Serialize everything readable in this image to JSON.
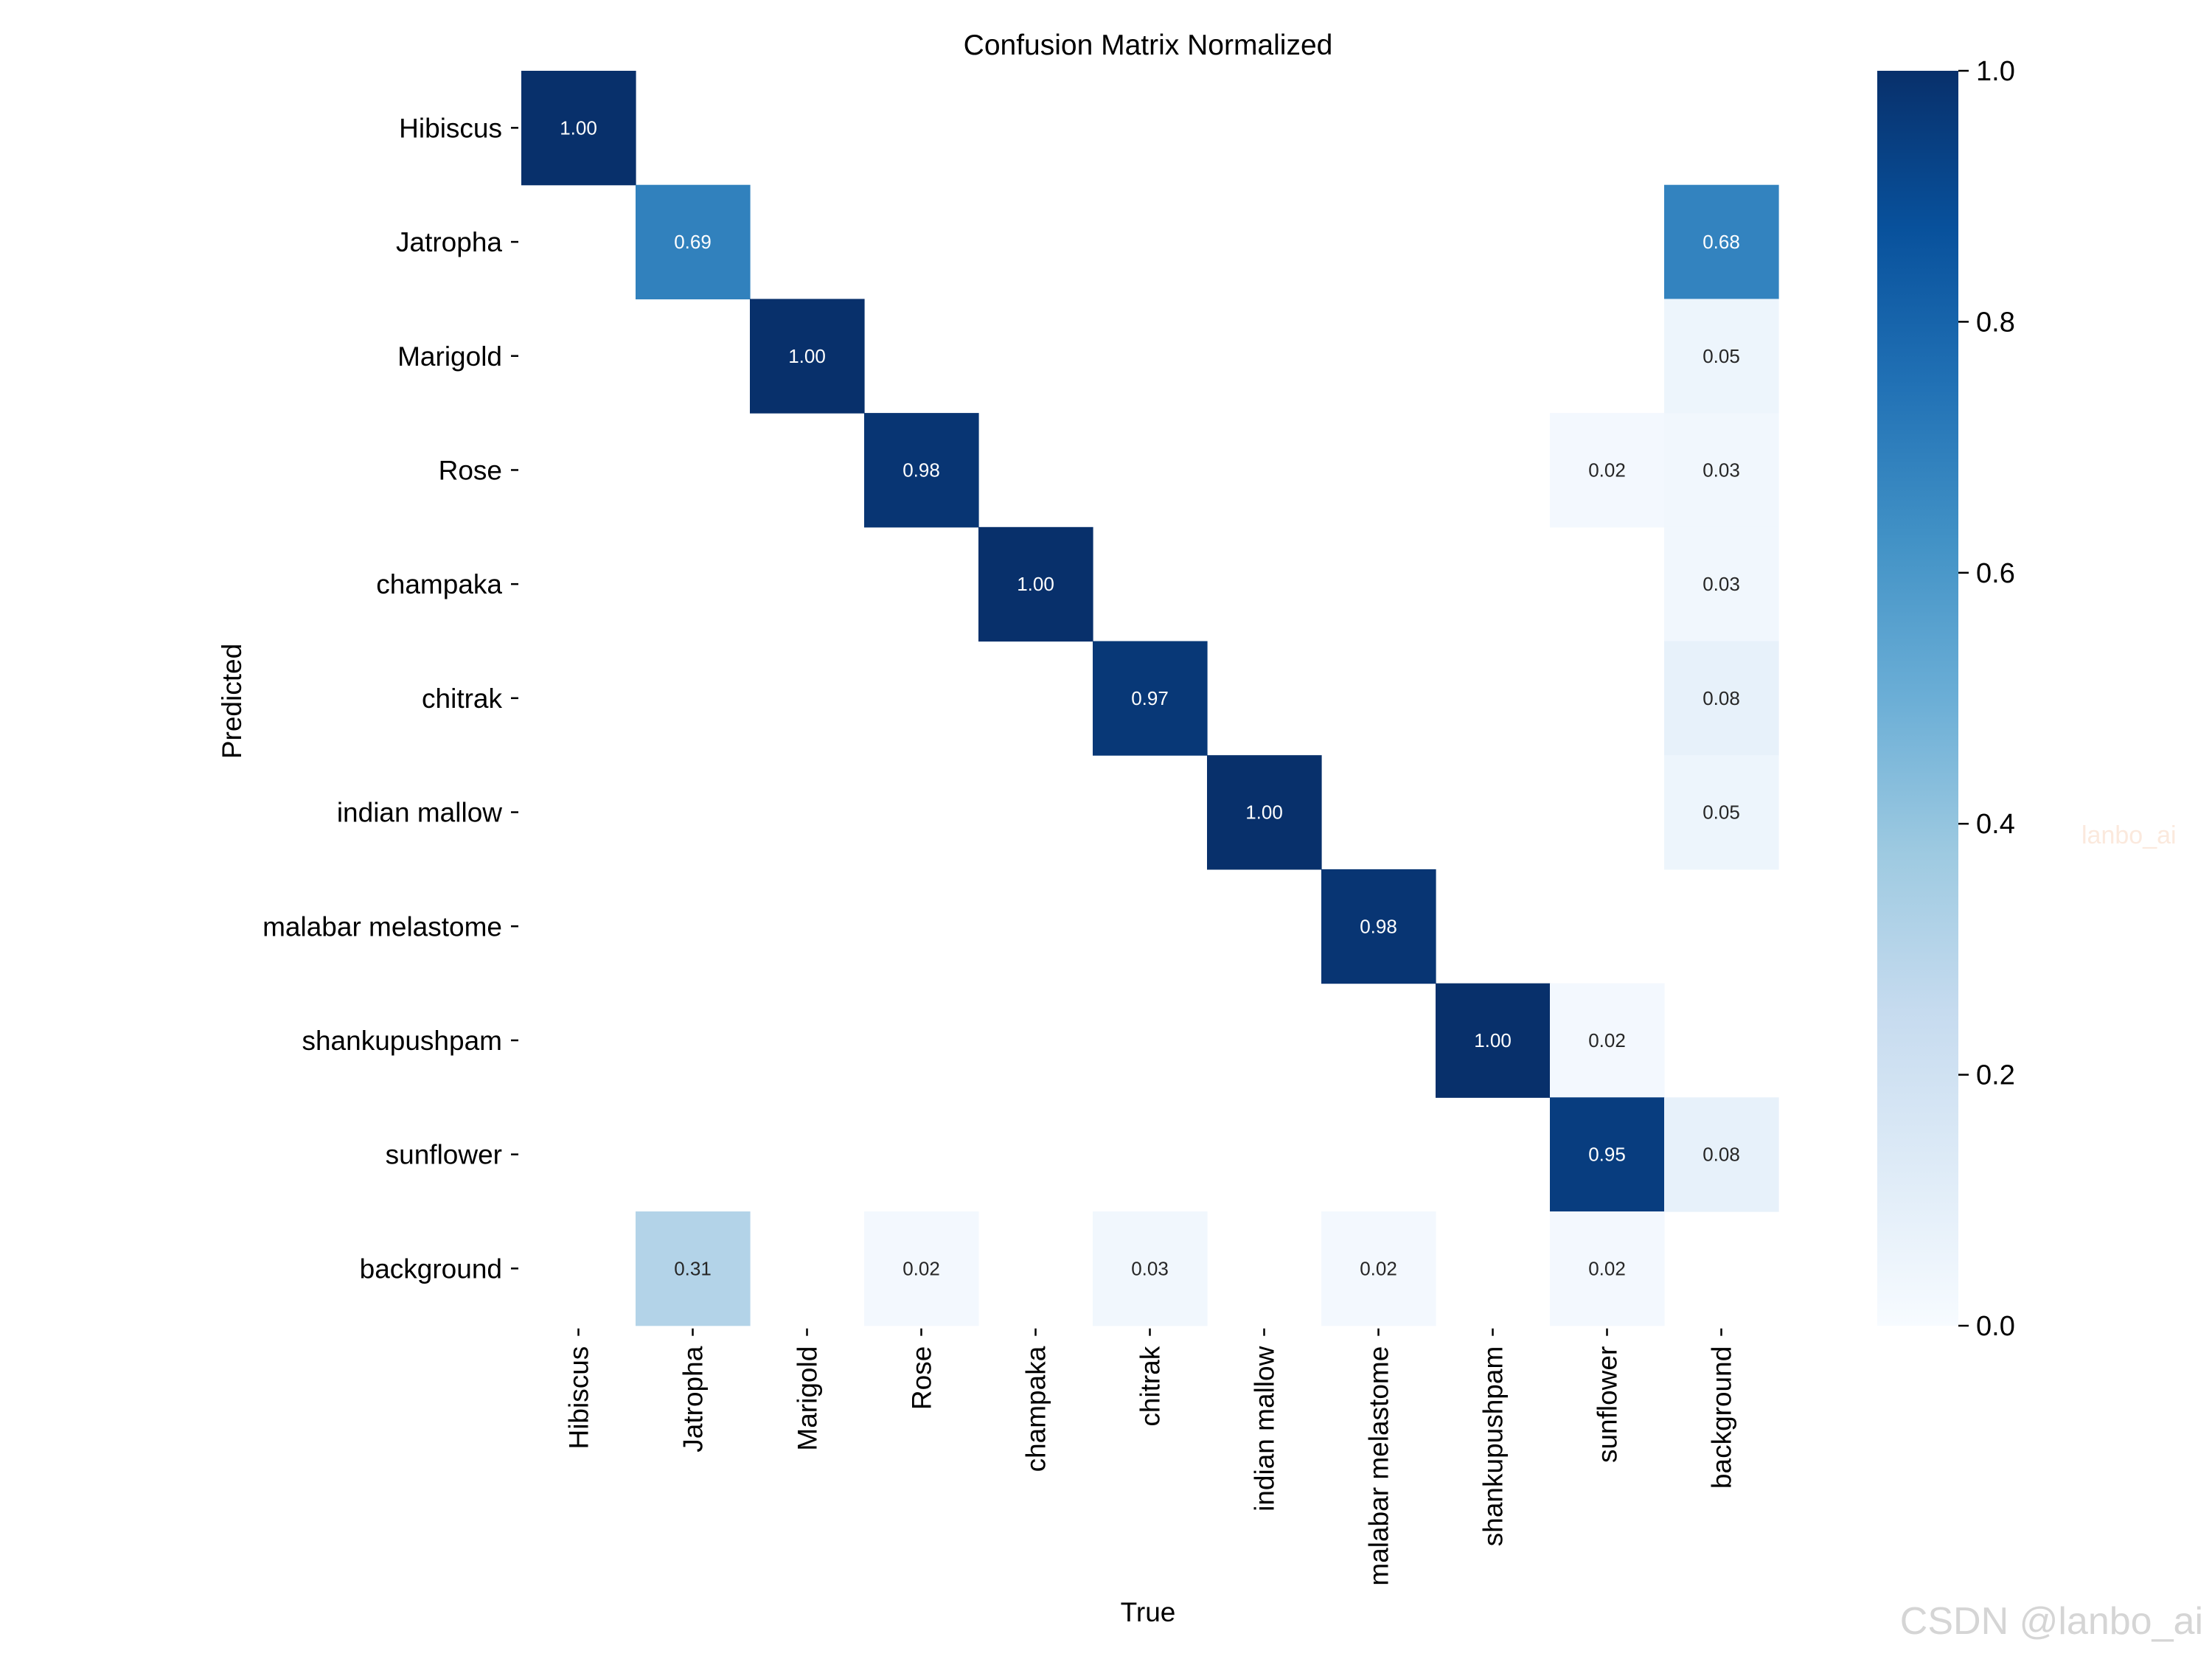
{
  "chart_data": {
    "type": "heatmap",
    "title": "Confusion Matrix Normalized",
    "xlabel": "True",
    "ylabel": "Predicted",
    "x_categories": [
      "Hibiscus",
      "Jatropha",
      "Marigold",
      "Rose",
      "champaka",
      "chitrak",
      "indian mallow",
      "malabar melastome",
      "shankupushpam",
      "sunflower",
      "background"
    ],
    "y_categories": [
      "Hibiscus",
      "Jatropha",
      "Marigold",
      "Rose",
      "champaka",
      "chitrak",
      "indian mallow",
      "malabar melastome",
      "shankupushpam",
      "sunflower",
      "background"
    ],
    "values": [
      [
        1.0,
        null,
        null,
        null,
        null,
        null,
        null,
        null,
        null,
        null,
        null
      ],
      [
        null,
        0.69,
        null,
        null,
        null,
        null,
        null,
        null,
        null,
        null,
        0.68
      ],
      [
        null,
        null,
        1.0,
        null,
        null,
        null,
        null,
        null,
        null,
        null,
        0.05
      ],
      [
        null,
        null,
        null,
        0.98,
        null,
        null,
        null,
        null,
        null,
        0.02,
        0.03
      ],
      [
        null,
        null,
        null,
        null,
        1.0,
        null,
        null,
        null,
        null,
        null,
        0.03
      ],
      [
        null,
        null,
        null,
        null,
        null,
        0.97,
        null,
        null,
        null,
        null,
        0.08
      ],
      [
        null,
        null,
        null,
        null,
        null,
        null,
        1.0,
        null,
        null,
        null,
        0.05
      ],
      [
        null,
        null,
        null,
        null,
        null,
        null,
        null,
        0.98,
        null,
        null,
        null
      ],
      [
        null,
        null,
        null,
        null,
        null,
        null,
        null,
        null,
        1.0,
        0.02,
        null
      ],
      [
        null,
        null,
        null,
        null,
        null,
        null,
        null,
        null,
        null,
        0.95,
        0.08
      ],
      [
        null,
        0.31,
        null,
        0.02,
        null,
        0.03,
        null,
        0.02,
        null,
        0.02,
        null
      ]
    ],
    "colorbar": {
      "range": [
        0.0,
        1.0
      ],
      "ticks": [
        "0.0",
        "0.2",
        "0.4",
        "0.6",
        "0.8",
        "1.0"
      ],
      "colormap": "Blues"
    },
    "value_format": "0.00"
  },
  "watermarks": {
    "side": "lanbo_ai",
    "corner": "CSDN @lanbo_ai"
  }
}
